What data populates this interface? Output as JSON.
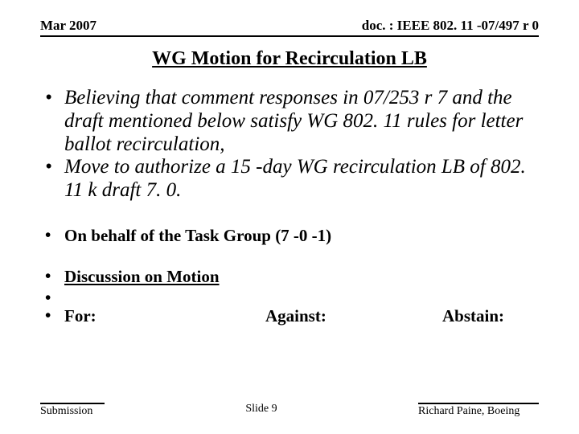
{
  "header": {
    "left": "Mar 2007",
    "right": "doc. : IEEE 802. 11 -07/497 r 0"
  },
  "title": "WG Motion for Recirculation LB",
  "bullets": {
    "b1": "Believing that comment responses in 07/253 r 7 and the draft mentioned below satisfy WG 802. 11 rules for letter ballot recirculation,",
    "b2": "Move to authorize a 15 -day WG recirculation LB of 802. 11 k draft 7. 0.",
    "b3": "On behalf of the Task Group (7 -0 -1)",
    "b4": "Discussion on Motion",
    "vote": {
      "for": "For:",
      "against": "Against:",
      "abstain": "Abstain:"
    }
  },
  "footer": {
    "left": "Submission",
    "center": "Slide 9",
    "right": "Richard Paine, Boeing"
  }
}
